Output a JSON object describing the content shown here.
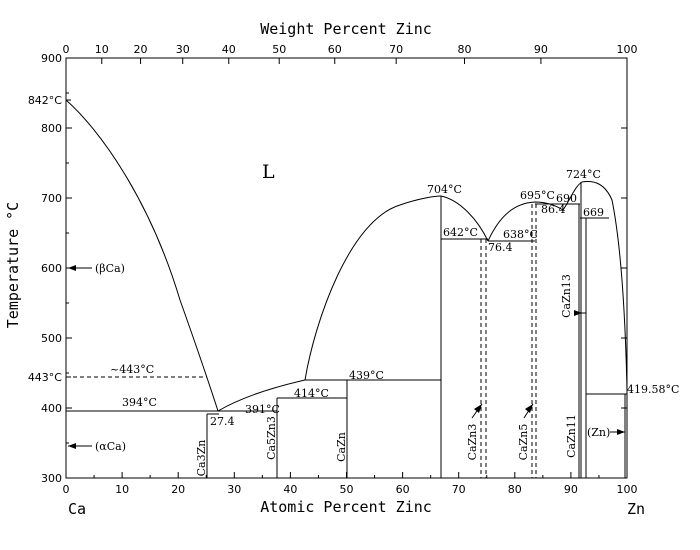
{
  "axes": {
    "top_title": "Weight Percent Zinc",
    "bottom_title": "Atomic Percent Zinc",
    "left_title": "Temperature °C",
    "left_end_label": "Ca",
    "right_end_label": "Zn",
    "top_ticks": [
      "0",
      "10",
      "20",
      "30",
      "40",
      "50",
      "60",
      "70",
      "80",
      "90",
      "100"
    ],
    "bottom_ticks": [
      "0",
      "10",
      "20",
      "30",
      "40",
      "50",
      "60",
      "70",
      "80",
      "90",
      "100"
    ],
    "left_ticks": [
      "300",
      "400",
      "500",
      "600",
      "700",
      "800",
      "900"
    ],
    "left_extra_ticks": [
      "842°C",
      "443°C"
    ]
  },
  "labels": {
    "liquid": "L",
    "beta_ca": "(βCa)",
    "alpha_ca": "(αCa)",
    "zn": "(Zn)",
    "t443": "~443°C",
    "t394": "394°C",
    "c274": "27.4",
    "t391": "391°C",
    "t414": "414°C",
    "t439": "439°C",
    "t704": "704°C",
    "t642": "642°C",
    "c764": "76.4",
    "t695": "695°C",
    "t638": "638°C",
    "c864": "86.4",
    "t690": "690",
    "t724": "724°C",
    "t669": "669",
    "t419": "419.58°C",
    "ca3zn": "Ca3Zn",
    "ca5zn3": "Ca5Zn3",
    "cazn": "CaZn",
    "cazn3": "CaZn3",
    "cazn5": "CaZn5",
    "cazn11": "CaZn11",
    "cazn13": "CaZn13"
  }
}
